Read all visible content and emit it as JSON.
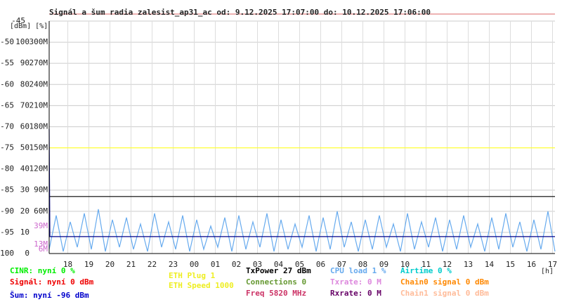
{
  "chart_data": {
    "type": "line",
    "title": "Signál a šum radia zalesist_ap31_ac od: 9.12.2025 17:07:00 do: 10.12.2025 17:06:00",
    "axis_units": "[dBm] [%]",
    "x_unit": "[h]",
    "xlim": [
      0,
      1440
    ],
    "xticks": [
      {
        "value": 53,
        "label": "18"
      },
      {
        "value": 113,
        "label": "19"
      },
      {
        "value": 173,
        "label": "20"
      },
      {
        "value": 233,
        "label": "21"
      },
      {
        "value": 293,
        "label": "22"
      },
      {
        "value": 353,
        "label": "23"
      },
      {
        "value": 413,
        "label": "00"
      },
      {
        "value": 473,
        "label": "01"
      },
      {
        "value": 533,
        "label": "02"
      },
      {
        "value": 593,
        "label": "03"
      },
      {
        "value": 653,
        "label": "04"
      },
      {
        "value": 713,
        "label": "05"
      },
      {
        "value": 773,
        "label": "06"
      },
      {
        "value": 833,
        "label": "07"
      },
      {
        "value": 893,
        "label": "08"
      },
      {
        "value": 953,
        "label": "09"
      },
      {
        "value": 1013,
        "label": "10"
      },
      {
        "value": 1073,
        "label": "11"
      },
      {
        "value": 1133,
        "label": "12"
      },
      {
        "value": 1193,
        "label": "13"
      },
      {
        "value": 1253,
        "label": "14"
      },
      {
        "value": 1313,
        "label": "15"
      },
      {
        "value": 1373,
        "label": "16"
      },
      {
        "value": 1433,
        "label": "17"
      }
    ],
    "ylim": [
      -100,
      -45
    ],
    "yticks": [
      -100,
      -95,
      -90,
      -85,
      -80,
      -75,
      -70,
      -65,
      -60,
      -55,
      -50,
      -45
    ],
    "y2lim": [
      0,
      110
    ],
    "y2ticks": [
      0,
      10,
      20,
      30,
      40,
      50,
      60,
      70,
      80,
      90,
      100
    ],
    "y3lim": [
      0,
      330
    ],
    "y3ticks": [
      {
        "value": 60,
        "label": "60M"
      },
      {
        "value": 90,
        "label": "90M"
      },
      {
        "value": 120,
        "label": "120M"
      },
      {
        "value": 150,
        "label": "150M"
      },
      {
        "value": 180,
        "label": "180M"
      },
      {
        "value": 210,
        "label": "210M"
      },
      {
        "value": 240,
        "label": "240M"
      },
      {
        "value": 270,
        "label": "270M"
      },
      {
        "value": 300,
        "label": "300M"
      }
    ],
    "rate_marks": {
      "color": "#cc66cc",
      "ticks": [
        {
          "value": 39,
          "label": "39M"
        },
        {
          "value": 13,
          "label": "13M"
        },
        {
          "value": 6,
          "label": "6M"
        }
      ]
    },
    "grid": true,
    "series": [
      {
        "color": "#66aaee",
        "axis": "y2",
        "x": [
          0,
          20,
          40,
          60,
          80,
          100,
          120,
          140,
          160,
          180,
          200,
          220,
          240,
          260,
          280,
          300,
          320,
          340,
          360,
          380,
          400,
          420,
          440,
          460,
          480,
          500,
          520,
          540,
          560,
          580,
          600,
          620,
          640,
          660,
          680,
          700,
          720,
          740,
          760,
          780,
          800,
          820,
          840,
          860,
          880,
          900,
          920,
          940,
          960,
          980,
          1000,
          1020,
          1040,
          1060,
          1080,
          1100,
          1120,
          1140,
          1160,
          1180,
          1200,
          1220,
          1240,
          1260,
          1280,
          1300,
          1320,
          1340,
          1360,
          1380,
          1400,
          1420,
          1440
        ],
        "values": [
          2,
          18,
          1,
          15,
          3,
          19,
          2,
          21,
          1,
          16,
          3,
          17,
          2,
          14,
          1,
          19,
          3,
          15,
          2,
          18,
          1,
          16,
          2,
          13,
          3,
          17,
          1,
          18,
          2,
          15,
          3,
          19,
          1,
          16,
          2,
          14,
          3,
          18,
          1,
          17,
          2,
          20,
          3,
          15,
          1,
          16,
          2,
          18,
          3,
          14,
          1,
          19,
          2,
          15,
          3,
          17,
          1,
          16,
          2,
          18,
          3,
          14,
          1,
          17,
          2,
          19,
          3,
          15,
          1,
          16,
          2,
          20,
          1
        ]
      },
      {
        "color": "#ffff33",
        "axis": "y2",
        "x": [
          0,
          1440
        ],
        "values": [
          50,
          50
        ]
      },
      {
        "color": "#000000",
        "axis": "y2",
        "x": [
          0,
          1440
        ],
        "values": [
          27,
          27
        ]
      },
      {
        "color": "#000088",
        "x": [
          0,
          2,
          1440
        ],
        "values": [
          -70.5,
          -96,
          -96
        ]
      }
    ],
    "legend": [
      {
        "text": "CINR: nyní 0 %",
        "color": "#00ee00"
      },
      {
        "text": "Signál: nyní 0 dBm",
        "color": "#ee0000"
      },
      {
        "text": "Šum: nyní -96 dBm",
        "color": "#0000cc"
      },
      {
        "text": "ETH Plug 1",
        "color": "#eeee22"
      },
      {
        "text": "ETH Speed 1000",
        "color": "#eeee22"
      },
      {
        "text": "TxPower 27 dBm",
        "color": "#000000"
      },
      {
        "text": "Connections 0",
        "color": "#669933"
      },
      {
        "text": "Freq 5820 MHz",
        "color": "#cc3366"
      },
      {
        "text": "CPU load 1 %",
        "color": "#66aaee"
      },
      {
        "text": "Txrate: 0 M",
        "color": "#dd88dd"
      },
      {
        "text": "Rxrate: 0 M",
        "color": "#660066"
      },
      {
        "text": "Airtime 0 %",
        "color": "#00cccc"
      },
      {
        "text": "Chain0 signal 0 dBm",
        "color": "#ff8800"
      },
      {
        "text": "Chain1 signal 0 dBm",
        "color": "#ffbb99"
      }
    ]
  }
}
